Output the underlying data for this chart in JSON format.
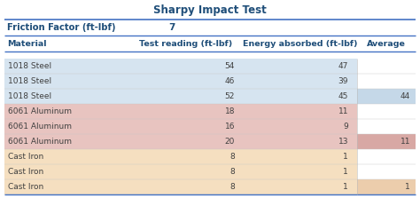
{
  "title": "Sharpy Impact Test",
  "friction_label": "Friction Factor (ft-lbf)",
  "friction_value": "7",
  "col_headers": [
    "Material",
    "Test reading (ft-lbf)",
    "Energy absorbed (ft-lbf)",
    "Average"
  ],
  "rows": [
    {
      "material": "1018 Steel",
      "test": "54",
      "energy": "47",
      "avg": "",
      "avg_bg": false
    },
    {
      "material": "1018 Steel",
      "test": "46",
      "energy": "39",
      "avg": "",
      "avg_bg": false
    },
    {
      "material": "1018 Steel",
      "test": "52",
      "energy": "45",
      "avg": "44",
      "avg_bg": true
    },
    {
      "material": "6061 Aluminum",
      "test": "18",
      "energy": "11",
      "avg": "",
      "avg_bg": false
    },
    {
      "material": "6061 Aluminum",
      "test": "16",
      "energy": "9",
      "avg": "",
      "avg_bg": false
    },
    {
      "material": "6061 Aluminum",
      "test": "20",
      "energy": "13",
      "avg": "11",
      "avg_bg": true
    },
    {
      "material": "Cast Iron",
      "test": "8",
      "energy": "1",
      "avg": "",
      "avg_bg": false
    },
    {
      "material": "Cast Iron",
      "test": "8",
      "energy": "1",
      "avg": "",
      "avg_bg": false
    },
    {
      "material": "Cast Iron",
      "test": "8",
      "energy": "1",
      "avg": "1",
      "avg_bg": true
    }
  ],
  "row_colors": [
    "#d6e4f0",
    "#d6e4f0",
    "#d6e4f0",
    "#e8c4c0",
    "#e8c4c0",
    "#e8c4c0",
    "#f5dfc0",
    "#f5dfc0",
    "#f5dfc0"
  ],
  "avg_colors": [
    "#c5d8e8",
    "#c5d8e8",
    "#c5d8e8",
    "#d8a8a4",
    "#d8a8a4",
    "#d8a8a4",
    "#eccdac",
    "#eccdac",
    "#eccdac"
  ],
  "header_text_color": "#1f4e79",
  "title_color": "#1f4e79",
  "blue_line_color": "#4472c4",
  "body_text_color": "#404040",
  "bg_color": "#ffffff",
  "fig_w": 4.74,
  "fig_h": 2.23,
  "dpi": 100
}
